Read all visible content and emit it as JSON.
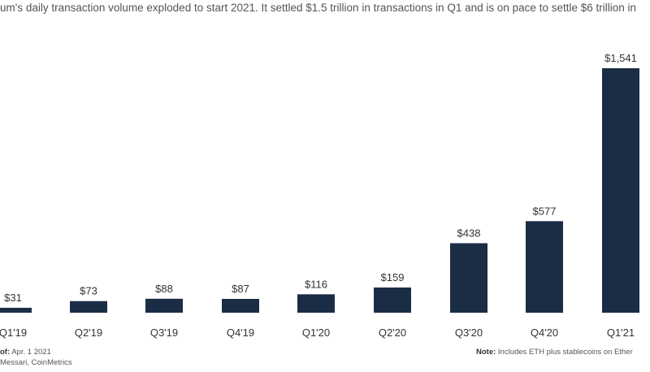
{
  "subtitle": "um's daily transaction volume exploded to start 2021.  It settled $1.5 trillion in transactions in Q1 and is on pace to settle $6 trillion in",
  "footer": {
    "as_of_label": "of:",
    "as_of_value": "Apr. 1 2021",
    "sources": "Messari, CoinMetrics",
    "note_label": "Note:",
    "note_text": "Includes  ETH plus stablecoins  on  Ether"
  },
  "colors": {
    "bar": "#1b2d45"
  },
  "chart_data": {
    "type": "bar",
    "categories": [
      "Q1'19",
      "Q2'19",
      "Q3'19",
      "Q4'19",
      "Q1'20",
      "Q2'20",
      "Q3'20",
      "Q4'20",
      "Q1'21"
    ],
    "values": [
      31,
      73,
      88,
      87,
      116,
      159,
      438,
      577,
      1541
    ],
    "value_labels": [
      "$31",
      "$73",
      "$88",
      "$87",
      "$116",
      "$159",
      "$438",
      "$577",
      "$1,541"
    ],
    "ylim": [
      0,
      1541
    ],
    "grid": false,
    "legend": "none"
  }
}
